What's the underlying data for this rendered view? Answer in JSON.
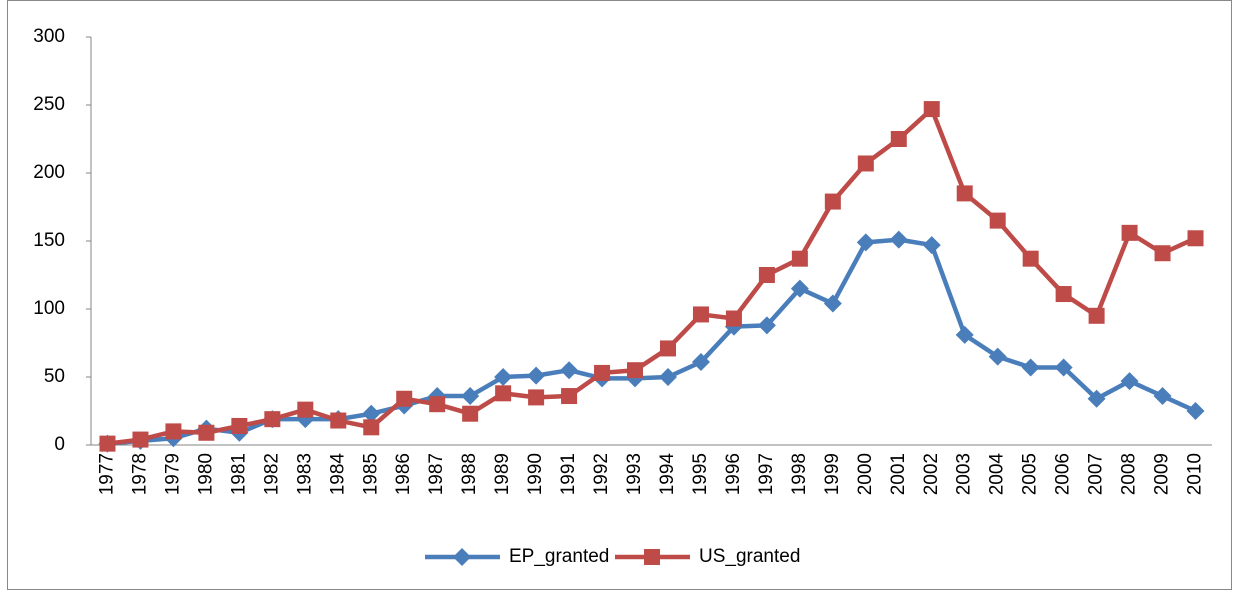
{
  "chart_data": {
    "type": "line",
    "categories": [
      "1977",
      "1978",
      "1979",
      "1980",
      "1981",
      "1982",
      "1983",
      "1984",
      "1985",
      "1986",
      "1987",
      "1988",
      "1989",
      "1990",
      "1991",
      "1992",
      "1993",
      "1994",
      "1995",
      "1996",
      "1997",
      "1998",
      "1999",
      "2000",
      "2001",
      "2002",
      "2003",
      "2004",
      "2005",
      "2006",
      "2007",
      "2008",
      "2009",
      "2010"
    ],
    "series": [
      {
        "name": "EP_granted",
        "color": "#4a7ebb",
        "marker": "diamond",
        "values": [
          1,
          3,
          5,
          12,
          9,
          19,
          19,
          19,
          23,
          29,
          36,
          36,
          50,
          51,
          55,
          49,
          49,
          50,
          61,
          87,
          88,
          115,
          104,
          149,
          151,
          147,
          81,
          65,
          57,
          57,
          34,
          47,
          36,
          25
        ]
      },
      {
        "name": "US_granted",
        "color": "#be4b48",
        "marker": "square",
        "values": [
          1,
          4,
          10,
          9,
          14,
          19,
          26,
          18,
          13,
          34,
          30,
          23,
          38,
          35,
          36,
          53,
          55,
          71,
          96,
          93,
          125,
          137,
          179,
          207,
          225,
          247,
          185,
          165,
          137,
          111,
          95,
          156,
          141,
          152
        ]
      }
    ],
    "ylim": [
      0,
      300
    ],
    "yticks": [
      0,
      50,
      100,
      150,
      200,
      250,
      300
    ],
    "grid": false,
    "legend": "bottom"
  }
}
